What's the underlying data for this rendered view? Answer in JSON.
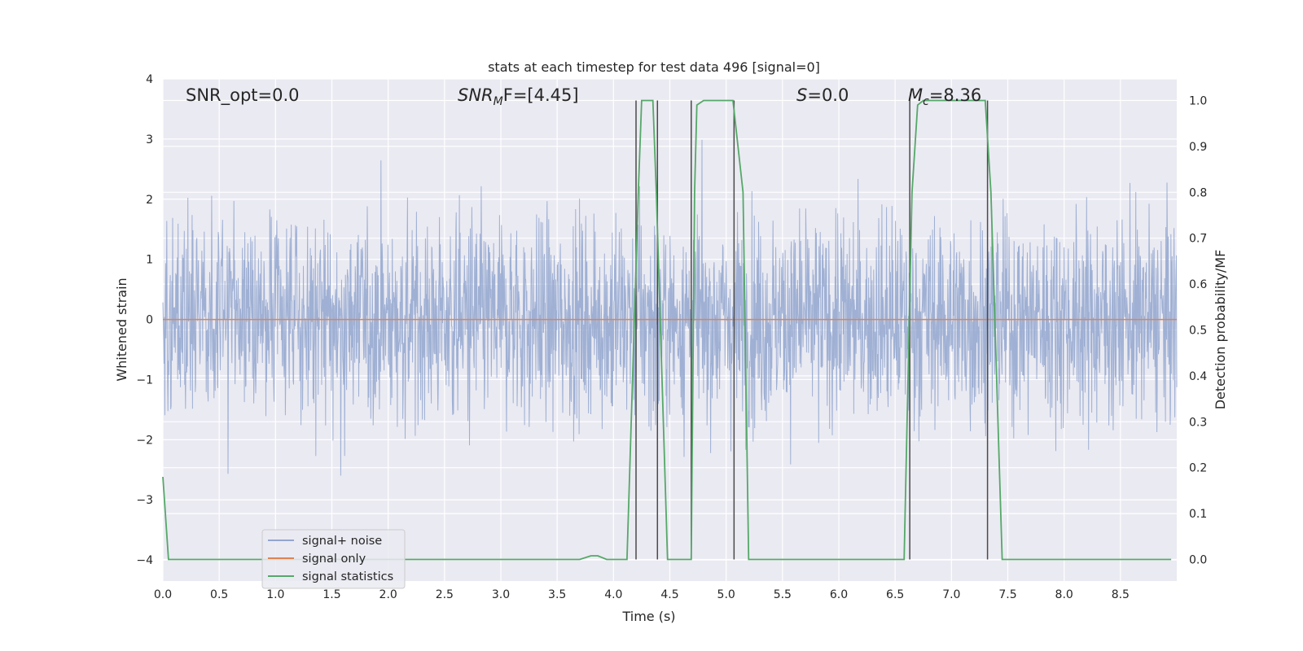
{
  "chart_data": {
    "type": "line",
    "title": "stats at each timestep for test data 496 [signal=0]",
    "xlabel": "Time (s)",
    "ylabel_left": "Whitened strain",
    "ylabel_right": "Detection probability/MF",
    "xlim": [
      0.0,
      9.0
    ],
    "ylim_left": [
      -4.35,
      4.0
    ],
    "ylim_right": [
      -0.047,
      1.047
    ],
    "x_ticks": [
      "0.0",
      "0.5",
      "1.0",
      "1.5",
      "2.0",
      "2.5",
      "3.0",
      "3.5",
      "4.0",
      "4.5",
      "5.0",
      "5.5",
      "6.0",
      "6.5",
      "7.0",
      "7.5",
      "8.0",
      "8.5"
    ],
    "y_ticks_left": [
      "4",
      "3",
      "2",
      "1",
      "0",
      "−1",
      "−2",
      "−3",
      "−4"
    ],
    "y_ticks_right": [
      "1.0",
      "0.9",
      "0.8",
      "0.7",
      "0.6",
      "0.5",
      "0.4",
      "0.3",
      "0.2",
      "0.1",
      "0.0"
    ],
    "grid": true,
    "legend_position": "lower-left",
    "annotations": {
      "snr_opt": "SNR_opt=0.0",
      "snr_mf_main": "SNR",
      "snr_mf_sub": "M",
      "snr_mf_rest": "F=[4.45]",
      "s_main": "S",
      "s_rest": "=0.0",
      "mc_main": "M",
      "mc_sub": "c",
      "mc_rest": "=8.36"
    },
    "series": [
      {
        "name": "signal+ noise",
        "color": "#92a6cf",
        "axis": "left",
        "description": "whitened strain noise, amplitude approximately within ±3.5",
        "noise_amplitude": 3.5
      },
      {
        "name": "signal only",
        "color": "#dd8452",
        "axis": "left",
        "x": [
          0.0,
          9.0
        ],
        "y": [
          0.0,
          0.0
        ]
      },
      {
        "name": "signal statistics",
        "color": "#55a868",
        "axis": "right",
        "x": [
          0.0,
          0.05,
          0.12,
          3.3,
          3.5,
          3.7,
          3.8,
          3.86,
          3.94,
          4.12,
          4.22,
          4.25,
          4.28,
          4.35,
          4.38,
          4.48,
          4.51,
          4.69,
          4.72,
          4.74,
          4.8,
          5.06,
          5.15,
          5.2,
          5.3,
          6.58,
          6.65,
          6.7,
          6.75,
          7.3,
          7.35,
          7.45,
          8.95
        ],
        "y": [
          0.18,
          0.0,
          0.0,
          0.0,
          0.0,
          0.0,
          0.008,
          0.008,
          0.0,
          0.0,
          0.8,
          1.0,
          1.0,
          1.0,
          0.8,
          0.0,
          0.0,
          0.0,
          0.8,
          0.99,
          1.0,
          1.0,
          0.8,
          0.0,
          0.0,
          0.0,
          0.8,
          0.99,
          1.0,
          1.0,
          0.8,
          0.0,
          0.0
        ]
      }
    ],
    "vertical_markers": {
      "color": "#4a4a4a",
      "x": [
        4.2,
        4.39,
        4.69,
        5.07,
        6.63,
        7.32
      ],
      "y_top": 1.0,
      "y_bottom": 0.0
    }
  }
}
